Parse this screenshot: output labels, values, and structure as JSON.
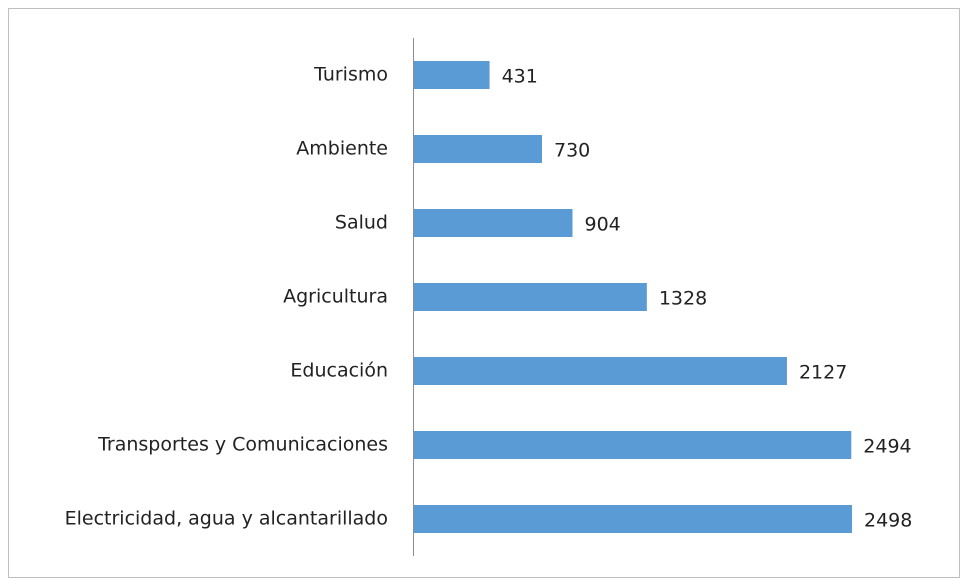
{
  "chart_data": {
    "type": "bar",
    "orientation": "horizontal",
    "categories": [
      "Turismo",
      "Ambiente",
      "Salud",
      "Agricultura",
      "Educación",
      "Transportes y Comunicaciones",
      "Electricidad, agua y alcantarillado"
    ],
    "values": [
      431,
      730,
      904,
      1328,
      2127,
      2494,
      2498
    ],
    "color": "#5b9bd5"
  }
}
